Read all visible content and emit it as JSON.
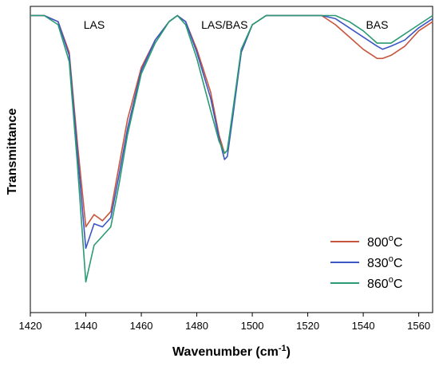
{
  "chart_data": {
    "type": "line",
    "xlabel": "Wavenumber (cm",
    "xlabel_sup": "-1",
    "xlabel_end": ")",
    "ylabel": "Transmittance",
    "xlim": [
      1420,
      1565
    ],
    "ylim": [
      0,
      1
    ],
    "x_ticks": [
      1420,
      1440,
      1460,
      1480,
      1500,
      1520,
      1540,
      1560
    ],
    "y_ticks_shown": false,
    "grid": false,
    "legend_position": "bottom-right",
    "annotations": [
      {
        "text": "LAS",
        "x": 1443
      },
      {
        "text": "LAS/BAS",
        "x": 1490
      },
      {
        "text": "BAS",
        "x": 1545
      }
    ],
    "series": [
      {
        "name_main": "800",
        "name_sup": "o",
        "name_end": "C",
        "color": "#c8553d",
        "x": [
          1420,
          1425,
          1430,
          1434,
          1437,
          1440,
          1443,
          1446,
          1449,
          1452,
          1455,
          1460,
          1465,
          1470,
          1473,
          1476,
          1480,
          1485,
          1488,
          1490,
          1491,
          1493,
          1496,
          1500,
          1505,
          1510,
          1520,
          1525,
          1530,
          1535,
          1540,
          1545,
          1547,
          1550,
          1555,
          1560,
          1565
        ],
        "y": [
          0.97,
          0.97,
          0.95,
          0.85,
          0.55,
          0.28,
          0.32,
          0.3,
          0.33,
          0.48,
          0.63,
          0.8,
          0.89,
          0.95,
          0.97,
          0.95,
          0.86,
          0.72,
          0.58,
          0.52,
          0.53,
          0.65,
          0.85,
          0.94,
          0.97,
          0.97,
          0.97,
          0.97,
          0.94,
          0.9,
          0.86,
          0.83,
          0.83,
          0.84,
          0.87,
          0.92,
          0.95
        ]
      },
      {
        "name_main": "830",
        "name_sup": "o",
        "name_end": "C",
        "color": "#3b57c4",
        "x": [
          1420,
          1425,
          1430,
          1434,
          1437,
          1440,
          1443,
          1446,
          1449,
          1452,
          1455,
          1460,
          1465,
          1470,
          1473,
          1476,
          1480,
          1485,
          1488,
          1490,
          1491,
          1493,
          1496,
          1500,
          1505,
          1510,
          1520,
          1525,
          1530,
          1535,
          1540,
          1545,
          1547,
          1550,
          1555,
          1560,
          1565
        ],
        "y": [
          0.97,
          0.97,
          0.95,
          0.84,
          0.52,
          0.21,
          0.29,
          0.28,
          0.31,
          0.45,
          0.6,
          0.79,
          0.89,
          0.95,
          0.97,
          0.95,
          0.85,
          0.7,
          0.57,
          0.5,
          0.51,
          0.64,
          0.85,
          0.94,
          0.97,
          0.97,
          0.97,
          0.97,
          0.96,
          0.93,
          0.9,
          0.87,
          0.86,
          0.87,
          0.89,
          0.93,
          0.96
        ]
      },
      {
        "name_main": "860",
        "name_sup": "o",
        "name_end": "C",
        "color": "#2a9a72",
        "x": [
          1420,
          1425,
          1430,
          1434,
          1437,
          1440,
          1443,
          1446,
          1449,
          1452,
          1455,
          1460,
          1465,
          1470,
          1473,
          1476,
          1480,
          1485,
          1488,
          1490,
          1491,
          1493,
          1496,
          1500,
          1505,
          1510,
          1520,
          1525,
          1530,
          1535,
          1540,
          1545,
          1547,
          1550,
          1555,
          1560,
          1565
        ],
        "y": [
          0.97,
          0.97,
          0.94,
          0.82,
          0.48,
          0.1,
          0.22,
          0.25,
          0.28,
          0.42,
          0.58,
          0.78,
          0.88,
          0.95,
          0.97,
          0.94,
          0.83,
          0.66,
          0.56,
          0.52,
          0.53,
          0.66,
          0.86,
          0.94,
          0.97,
          0.97,
          0.97,
          0.97,
          0.97,
          0.95,
          0.92,
          0.88,
          0.88,
          0.88,
          0.91,
          0.94,
          0.97
        ]
      }
    ]
  }
}
